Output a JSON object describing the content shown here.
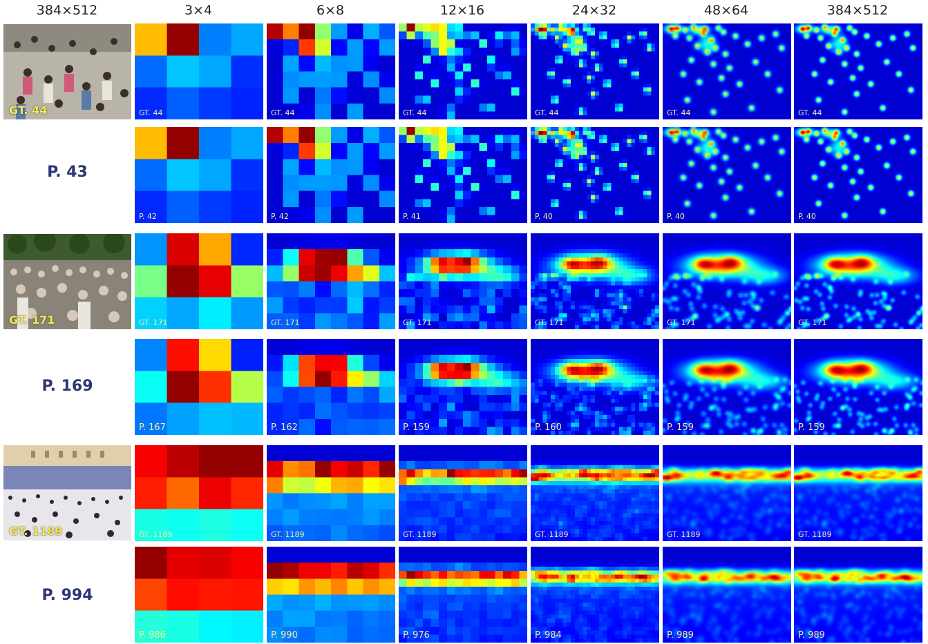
{
  "column_headers": [
    "384×512",
    "3×4",
    "6×8",
    "12×16",
    "24×32",
    "48×64",
    "384×512"
  ],
  "scenes": [
    {
      "gt_label": "GT. 44",
      "pred_label": "P. 43",
      "gt_maps": [
        "GT. 44",
        "GT. 44",
        "GT. 44",
        "GT. 44",
        "GT. 44",
        "GT. 44"
      ],
      "pred_maps": [
        "P. 42",
        "P. 42",
        "P. 41",
        "P. 40",
        "P. 40",
        "P. 40"
      ]
    },
    {
      "gt_label": "GT. 171",
      "pred_label": "P. 169",
      "gt_maps": [
        "GT. 171",
        "GT. 171",
        "GT. 171",
        "GT. 171",
        "GT. 171",
        "GT. 171"
      ],
      "pred_maps": [
        "P. 167",
        "P. 162",
        "P. 159",
        "P. 160",
        "P. 159",
        "P. 159"
      ]
    },
    {
      "gt_label": "GT. 1189",
      "pred_label": "P. 994",
      "gt_maps": [
        "GT. 1189",
        "GT. 1189",
        "GT. 1189",
        "GT. 1189",
        "GT. 1189",
        "GT. 1189"
      ],
      "pred_maps": [
        "P. 986",
        "P. 990",
        "P. 976",
        "P. 984",
        "P. 989",
        "P. 989"
      ]
    }
  ],
  "colormap": "jet"
}
